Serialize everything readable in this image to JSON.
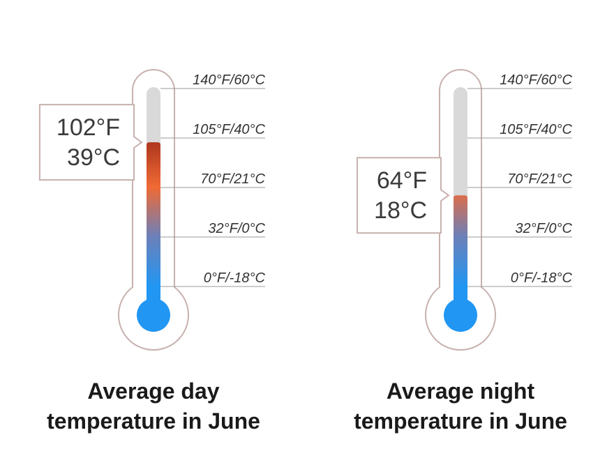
{
  "chart_data": [
    {
      "type": "thermometer",
      "title": "Average day temperature in June",
      "value": 102,
      "value_label": "102°F",
      "celsius_label": "39°C",
      "ylim": [
        0,
        140
      ],
      "yticks": [
        {
          "value": 140,
          "label": "140°F/60°C"
        },
        {
          "value": 105,
          "label": "105°F/40°C"
        },
        {
          "value": 70,
          "label": "70°F/21°C"
        },
        {
          "value": 32,
          "label": "32°F/0°C"
        },
        {
          "value": 0,
          "label": "0°F/-18°C"
        }
      ]
    },
    {
      "type": "thermometer",
      "title": "Average night temperature in June",
      "value": 64,
      "value_label": "64°F",
      "celsius_label": "18°C",
      "ylim": [
        0,
        140
      ],
      "yticks": [
        {
          "value": 140,
          "label": "140°F/60°C"
        },
        {
          "value": 105,
          "label": "105°F/40°C"
        },
        {
          "value": 70,
          "label": "70°F/21°C"
        },
        {
          "value": 32,
          "label": "32°F/0°C"
        },
        {
          "value": 0,
          "label": "0°F/-18°C"
        }
      ]
    }
  ]
}
